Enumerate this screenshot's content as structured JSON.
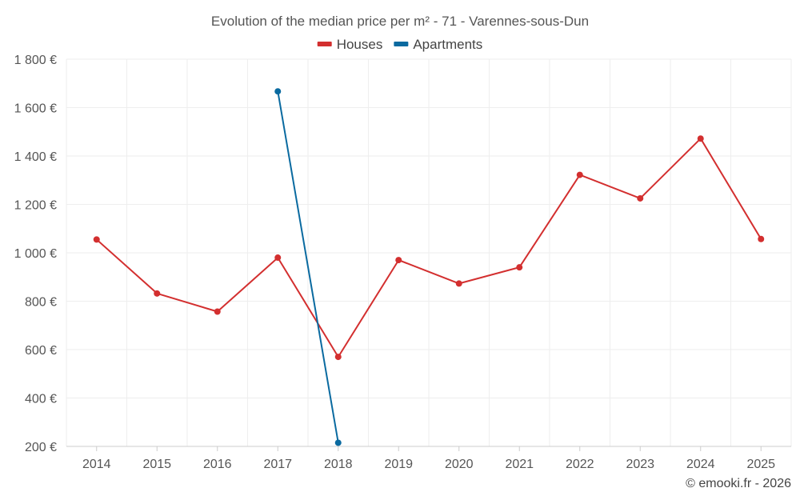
{
  "chart_data": {
    "type": "line",
    "title": "Evolution of the median price per m² - 71 - Varennes-sous-Dun",
    "categories": [
      "2014",
      "2015",
      "2016",
      "2017",
      "2018",
      "2019",
      "2020",
      "2021",
      "2022",
      "2023",
      "2024",
      "2025"
    ],
    "ylim": [
      200,
      1800
    ],
    "yticks": [
      200,
      400,
      600,
      800,
      1000,
      1200,
      1400,
      1600,
      1800
    ],
    "ytick_labels": [
      "200 €",
      "400 €",
      "600 €",
      "800 €",
      "1 000 €",
      "1 200 €",
      "1 400 €",
      "1 600 €",
      "1 800 €"
    ],
    "grid": true,
    "legend_position": "top-center",
    "series": [
      {
        "name": "Houses",
        "color": "#d32f2f",
        "values": [
          1055,
          832,
          757,
          980,
          570,
          970,
          873,
          940,
          1322,
          1225,
          1472,
          1057
        ]
      },
      {
        "name": "Apartments",
        "color": "#0a6aa0",
        "values": [
          null,
          null,
          null,
          1667,
          215,
          null,
          null,
          null,
          null,
          null,
          null,
          null
        ]
      }
    ],
    "credit": "© emooki.fr - 2026"
  }
}
